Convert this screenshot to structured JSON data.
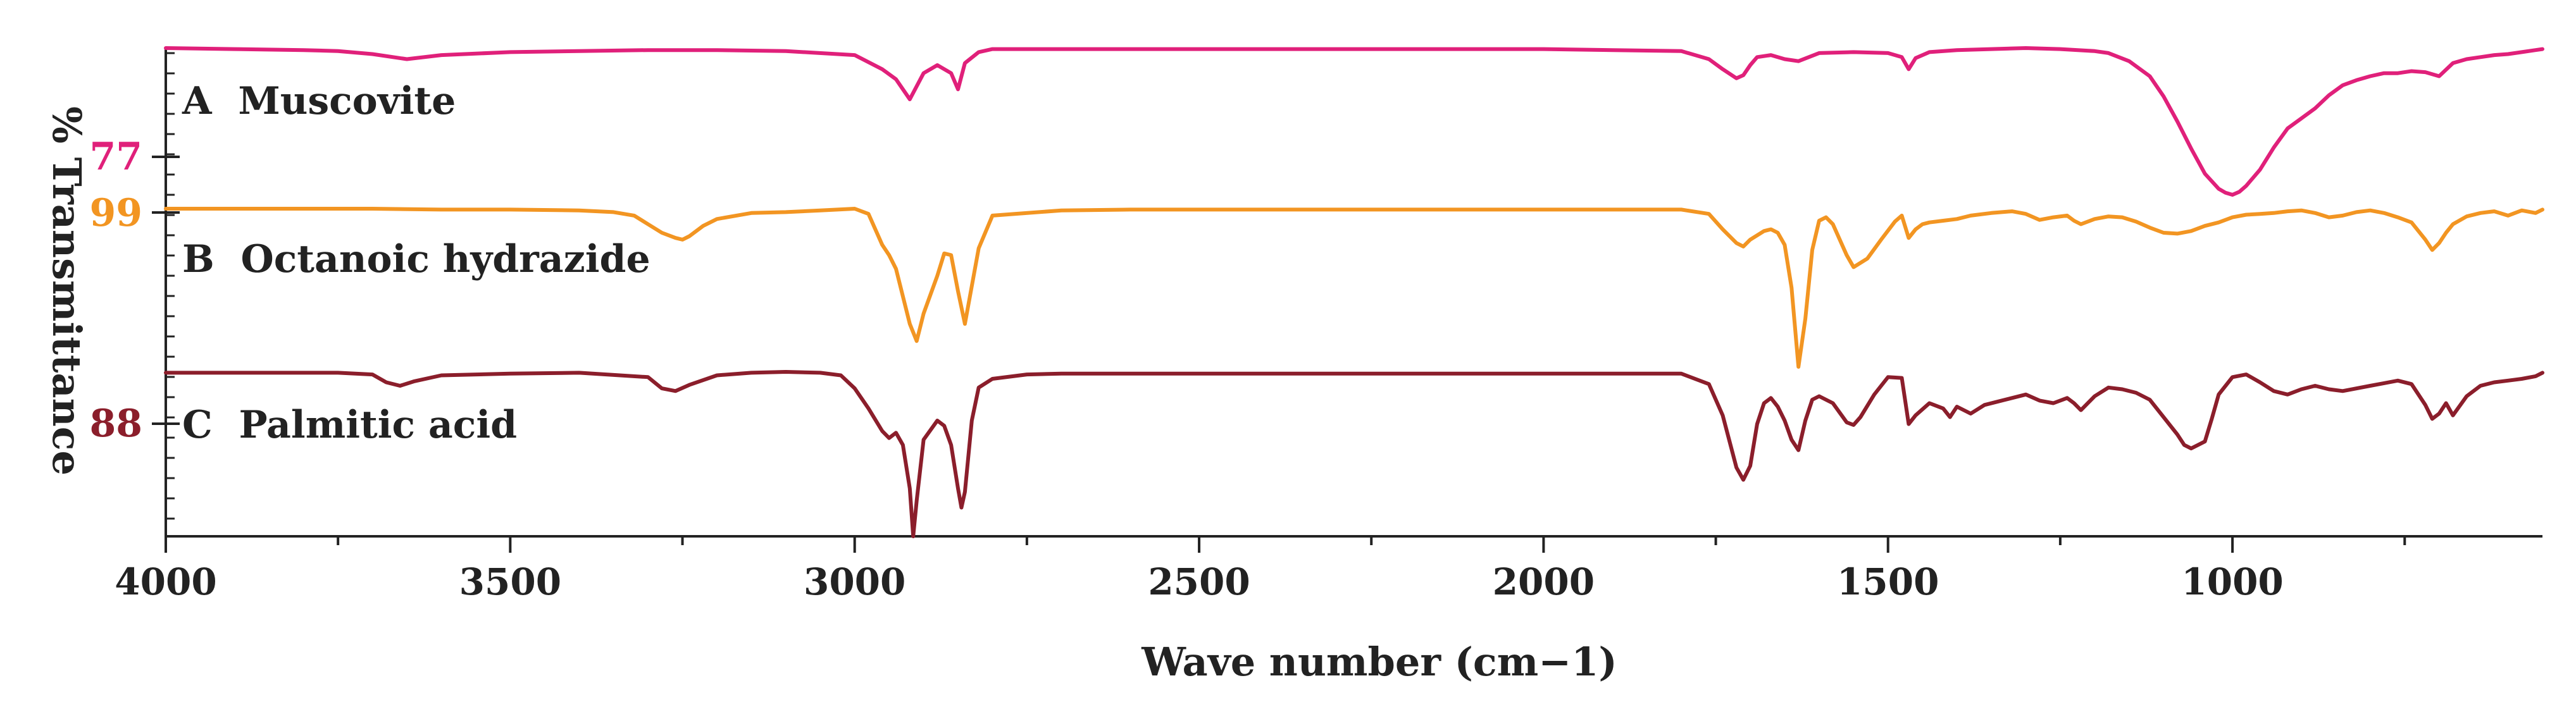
{
  "chart_data": {
    "type": "line",
    "title": "",
    "xlabel": "Wave number (cm−1)",
    "ylabel": "% Transmittance",
    "xlim": [
      4000,
      550
    ],
    "x_inverted": true,
    "grid": false,
    "x_ticks": [
      4000,
      3500,
      3000,
      2500,
      2000,
      1500,
      1000
    ],
    "x_tick_labels": [
      "4000",
      "3500",
      "3000",
      "2500",
      "2000",
      "1500",
      "1000"
    ],
    "legend": "inline labels at left",
    "series": [
      {
        "name": "A  Muscovite",
        "color": "#e0207a",
        "offset_label": "77",
        "x": [
          4000,
          3900,
          3800,
          3750,
          3700,
          3650,
          3600,
          3500,
          3400,
          3300,
          3200,
          3100,
          3000,
          2960,
          2940,
          2920,
          2900,
          2880,
          2860,
          2850,
          2840,
          2820,
          2800,
          2700,
          2600,
          2500,
          2400,
          2300,
          2200,
          2100,
          2000,
          1900,
          1800,
          1760,
          1740,
          1720,
          1710,
          1700,
          1690,
          1670,
          1650,
          1630,
          1600,
          1550,
          1500,
          1480,
          1470,
          1460,
          1440,
          1400,
          1300,
          1250,
          1200,
          1180,
          1150,
          1120,
          1100,
          1080,
          1060,
          1040,
          1020,
          1010,
          1000,
          990,
          980,
          960,
          940,
          920,
          900,
          880,
          860,
          840,
          820,
          800,
          780,
          760,
          740,
          720,
          700,
          680,
          660,
          640,
          620,
          600,
          580,
          560,
          550
        ],
        "y": [
          99.3,
          99.2,
          99.1,
          99.0,
          98.7,
          98.2,
          98.6,
          98.9,
          99.0,
          99.1,
          99.1,
          99.0,
          98.6,
          97.2,
          96.2,
          94.2,
          96.8,
          97.6,
          96.8,
          95.2,
          97.8,
          98.9,
          99.2,
          99.2,
          99.2,
          99.2,
          99.2,
          99.2,
          99.2,
          99.2,
          99.2,
          99.1,
          99.0,
          98.2,
          97.2,
          96.3,
          96.6,
          97.6,
          98.4,
          98.6,
          98.2,
          98.0,
          98.8,
          98.9,
          98.8,
          98.4,
          97.2,
          98.3,
          98.9,
          99.1,
          99.3,
          99.2,
          99.0,
          98.8,
          98.0,
          96.5,
          94.5,
          92.0,
          89.3,
          86.8,
          85.3,
          84.9,
          84.7,
          85.0,
          85.6,
          87.2,
          89.4,
          91.3,
          92.3,
          93.3,
          94.6,
          95.6,
          96.1,
          96.5,
          96.8,
          96.8,
          97.0,
          96.9,
          96.5,
          97.8,
          98.2,
          98.4,
          98.6,
          98.7,
          98.9,
          99.1,
          99.2
        ]
      },
      {
        "name": "B  Octanoic hydrazide",
        "color": "#f29522",
        "offset_label": "99",
        "x": [
          4000,
          3900,
          3800,
          3700,
          3600,
          3500,
          3400,
          3350,
          3320,
          3300,
          3280,
          3260,
          3250,
          3240,
          3220,
          3200,
          3150,
          3100,
          3050,
          3000,
          2980,
          2960,
          2950,
          2940,
          2920,
          2910,
          2900,
          2880,
          2870,
          2860,
          2850,
          2840,
          2820,
          2800,
          2700,
          2600,
          2500,
          2400,
          2300,
          2200,
          2100,
          2000,
          1900,
          1800,
          1760,
          1740,
          1720,
          1710,
          1700,
          1680,
          1670,
          1660,
          1650,
          1640,
          1630,
          1620,
          1610,
          1600,
          1590,
          1580,
          1560,
          1550,
          1530,
          1510,
          1490,
          1480,
          1470,
          1460,
          1450,
          1440,
          1420,
          1400,
          1380,
          1350,
          1320,
          1300,
          1280,
          1260,
          1240,
          1230,
          1220,
          1200,
          1180,
          1160,
          1140,
          1120,
          1100,
          1080,
          1060,
          1040,
          1020,
          1000,
          980,
          960,
          940,
          920,
          900,
          880,
          860,
          840,
          820,
          800,
          780,
          760,
          740,
          720,
          710,
          700,
          690,
          680,
          660,
          640,
          620,
          600,
          580,
          560,
          550
        ],
        "y": [
          99.4,
          99.4,
          99.4,
          99.4,
          99.3,
          99.3,
          99.2,
          99.0,
          98.6,
          97.6,
          96.6,
          96.0,
          95.8,
          96.2,
          97.4,
          98.2,
          98.9,
          99.0,
          99.2,
          99.4,
          98.8,
          95.2,
          94.0,
          92.4,
          86.0,
          84.0,
          87.2,
          91.6,
          94.2,
          94.0,
          89.8,
          86.0,
          94.8,
          98.6,
          99.2,
          99.3,
          99.3,
          99.3,
          99.3,
          99.3,
          99.3,
          99.3,
          99.3,
          99.3,
          98.8,
          97.0,
          95.4,
          95.0,
          95.8,
          96.8,
          97.0,
          96.6,
          95.2,
          90.2,
          81.0,
          86.6,
          94.6,
          98.0,
          98.4,
          97.6,
          94.0,
          92.6,
          93.6,
          95.8,
          97.9,
          98.6,
          96.0,
          97.0,
          97.6,
          97.8,
          98.0,
          98.2,
          98.6,
          98.9,
          99.1,
          98.8,
          98.1,
          98.4,
          98.6,
          98.0,
          97.6,
          98.2,
          98.5,
          98.4,
          97.9,
          97.2,
          96.6,
          96.5,
          96.8,
          97.4,
          97.8,
          98.4,
          98.7,
          98.8,
          98.9,
          99.1,
          99.2,
          98.9,
          98.4,
          98.6,
          99.0,
          99.2,
          98.9,
          98.4,
          97.8,
          95.8,
          94.6,
          95.4,
          96.6,
          97.6,
          98.5,
          98.9,
          99.1,
          98.6,
          99.2,
          98.9,
          99.3
        ]
      },
      {
        "name": "C  Palmitic acid",
        "color": "#8b1e2b",
        "offset_label": "88",
        "x": [
          4000,
          3900,
          3800,
          3750,
          3700,
          3680,
          3660,
          3640,
          3600,
          3500,
          3400,
          3300,
          3280,
          3260,
          3240,
          3200,
          3150,
          3100,
          3050,
          3020,
          3000,
          2980,
          2960,
          2950,
          2940,
          2930,
          2920,
          2915,
          2910,
          2900,
          2880,
          2870,
          2860,
          2850,
          2845,
          2840,
          2830,
          2820,
          2800,
          2750,
          2700,
          2600,
          2500,
          2400,
          2300,
          2200,
          2100,
          2000,
          1900,
          1800,
          1760,
          1740,
          1720,
          1710,
          1700,
          1690,
          1680,
          1670,
          1660,
          1650,
          1640,
          1630,
          1620,
          1610,
          1600,
          1580,
          1560,
          1550,
          1540,
          1520,
          1500,
          1480,
          1470,
          1460,
          1440,
          1420,
          1410,
          1400,
          1380,
          1360,
          1340,
          1300,
          1280,
          1260,
          1240,
          1230,
          1220,
          1200,
          1180,
          1160,
          1140,
          1120,
          1100,
          1080,
          1070,
          1060,
          1050,
          1040,
          1030,
          1020,
          1000,
          980,
          960,
          940,
          920,
          900,
          880,
          860,
          840,
          800,
          780,
          760,
          740,
          720,
          710,
          700,
          690,
          680,
          660,
          640,
          620,
          600,
          580,
          560,
          550
        ],
        "y": [
          99.3,
          99.3,
          99.3,
          99.3,
          99.1,
          98.2,
          97.8,
          98.3,
          99.0,
          99.2,
          99.3,
          98.8,
          97.5,
          97.2,
          97.9,
          99.0,
          99.3,
          99.4,
          99.3,
          99.0,
          97.5,
          95.2,
          92.6,
          91.8,
          92.4,
          91.0,
          86.0,
          80.5,
          84.6,
          91.6,
          93.8,
          93.2,
          91.0,
          86.0,
          83.8,
          85.6,
          93.8,
          97.6,
          98.6,
          99.1,
          99.2,
          99.2,
          99.2,
          99.2,
          99.2,
          99.2,
          99.2,
          99.2,
          99.2,
          99.2,
          98.0,
          94.4,
          88.4,
          87.0,
          88.6,
          93.4,
          95.8,
          96.4,
          95.4,
          93.8,
          91.6,
          90.4,
          93.8,
          96.2,
          96.6,
          95.8,
          93.6,
          93.3,
          94.2,
          96.8,
          98.8,
          98.7,
          93.4,
          94.4,
          95.8,
          95.2,
          94.2,
          95.4,
          94.6,
          95.6,
          96.0,
          96.8,
          96.1,
          95.8,
          96.4,
          95.8,
          95.0,
          96.6,
          97.6,
          97.4,
          97.0,
          96.2,
          94.2,
          92.2,
          91.0,
          90.6,
          91.0,
          91.4,
          94.0,
          96.8,
          98.8,
          99.1,
          98.2,
          97.2,
          96.8,
          97.4,
          97.8,
          97.4,
          97.2,
          97.8,
          98.1,
          98.4,
          98.0,
          95.6,
          94.0,
          94.6,
          95.8,
          94.4,
          96.6,
          97.8,
          98.2,
          98.4,
          98.6,
          98.9,
          99.3
        ]
      }
    ]
  }
}
